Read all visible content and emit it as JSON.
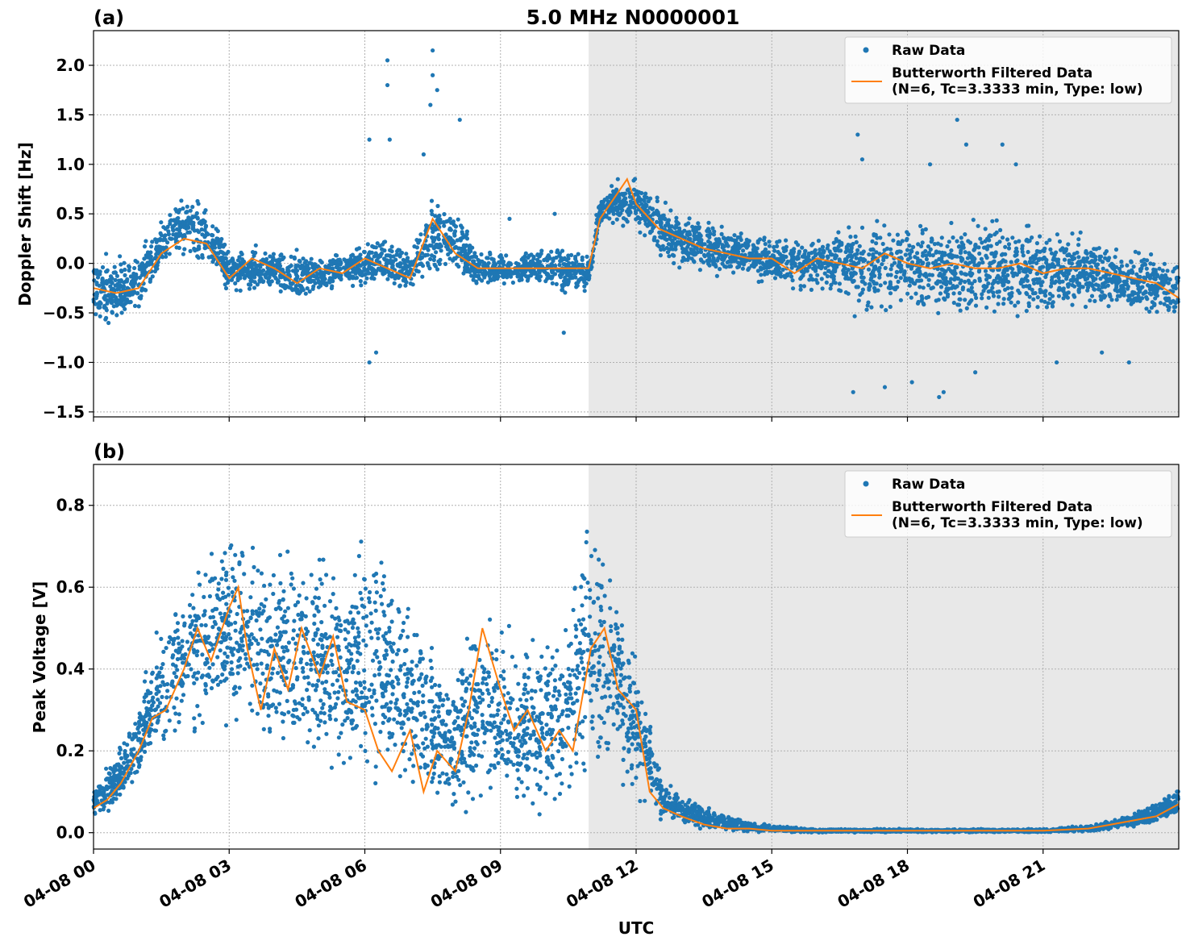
{
  "title": "5.0 MHz N0000001",
  "colors": {
    "raw": "#1f77b4",
    "filtered": "#ff7f0e",
    "night_shade": "#e8e8e8"
  },
  "chart_data": [
    {
      "panel": "(a)",
      "type": "scatter",
      "ylabel": "Doppler Shift [Hz]",
      "xlabel": "",
      "xlim": [
        0,
        24
      ],
      "ylim": [
        -1.55,
        2.35
      ],
      "yticks": [
        -1.5,
        -1.0,
        -0.5,
        0.0,
        0.5,
        1.0,
        1.5,
        2.0
      ],
      "ytick_labels": [
        "−1.5",
        "−1.0",
        "−0.5",
        "0.0",
        "0.5",
        "1.0",
        "1.5",
        "2.0"
      ],
      "xticks": [
        0,
        3,
        6,
        9,
        12,
        15,
        18,
        21
      ],
      "grid": true,
      "legend_position": "top-right",
      "shaded_region": {
        "x_start": 10.95,
        "x_end": 24
      },
      "series": [
        {
          "name": "Raw Data",
          "kind": "points",
          "envelope_x": [
            0,
            1,
            1.5,
            2,
            2.5,
            3,
            3.5,
            4,
            4.5,
            5,
            5.5,
            6,
            6.5,
            7,
            7.5,
            8,
            8.5,
            9,
            9.5,
            10,
            10.5,
            10.95,
            11.2,
            11.5,
            12,
            12.5,
            13,
            13.5,
            14,
            14.5,
            15,
            15.5,
            16,
            16.5,
            17,
            17.5,
            18,
            18.5,
            19,
            19.5,
            20,
            20.5,
            21,
            21.5,
            22,
            22.5,
            23,
            23.5,
            24
          ],
          "envelope_low": [
            -0.7,
            -0.6,
            -0.15,
            0.0,
            -0.05,
            -0.35,
            -0.35,
            -0.3,
            -0.5,
            -0.35,
            -0.25,
            -0.3,
            -0.3,
            -0.3,
            -0.2,
            -0.2,
            -0.3,
            -0.25,
            -0.25,
            -0.25,
            -0.4,
            -0.3,
            0.35,
            0.35,
            0.3,
            0.05,
            -0.1,
            -0.15,
            -0.15,
            -0.2,
            -0.25,
            -0.35,
            -0.3,
            -0.5,
            -0.6,
            -0.6,
            -0.6,
            -0.6,
            -0.65,
            -0.65,
            -0.65,
            -0.6,
            -0.6,
            -0.55,
            -0.55,
            -0.55,
            -0.6,
            -0.6,
            -0.65
          ],
          "envelope_high": [
            0.15,
            0.15,
            0.55,
            0.75,
            0.65,
            0.2,
            0.2,
            0.15,
            0.25,
            0.1,
            0.15,
            0.25,
            0.3,
            0.15,
            0.8,
            0.6,
            0.15,
            0.15,
            0.15,
            0.2,
            0.25,
            0.1,
            0.7,
            0.85,
            0.9,
            0.7,
            0.55,
            0.5,
            0.4,
            0.35,
            0.3,
            0.3,
            0.35,
            0.55,
            0.5,
            0.5,
            0.55,
            0.6,
            0.55,
            0.6,
            0.55,
            0.5,
            0.45,
            0.4,
            0.35,
            0.3,
            0.2,
            0.15,
            0.1
          ]
        },
        {
          "name": "Butterworth Filtered Data\n(N=6, Tc=3.3333 min, Type: low)",
          "kind": "line",
          "x": [
            0,
            0.5,
            1,
            1.5,
            2,
            2.5,
            3,
            3.5,
            4,
            4.5,
            5,
            5.5,
            6,
            6.5,
            7,
            7.5,
            8,
            8.5,
            9,
            9.5,
            10,
            10.5,
            10.95,
            11.2,
            11.5,
            11.8,
            12,
            12.5,
            13,
            13.5,
            14,
            14.5,
            15,
            15.5,
            16,
            16.5,
            17,
            17.5,
            18,
            18.5,
            19,
            19.5,
            20,
            20.5,
            21,
            21.5,
            22,
            22.5,
            23,
            23.5,
            24
          ],
          "y": [
            -0.25,
            -0.3,
            -0.25,
            0.1,
            0.25,
            0.2,
            -0.15,
            0.05,
            -0.05,
            -0.2,
            -0.05,
            -0.1,
            0.05,
            -0.05,
            -0.15,
            0.45,
            0.1,
            -0.05,
            -0.05,
            -0.05,
            -0.05,
            -0.05,
            -0.05,
            0.45,
            0.65,
            0.85,
            0.6,
            0.35,
            0.25,
            0.15,
            0.1,
            0.05,
            0.05,
            -0.1,
            0.05,
            0.0,
            -0.05,
            0.1,
            0.0,
            -0.05,
            0.0,
            -0.05,
            -0.05,
            0.0,
            -0.1,
            -0.05,
            -0.05,
            -0.1,
            -0.15,
            -0.2,
            -0.35
          ]
        }
      ],
      "outliers": [
        [
          6.1,
          1.25
        ],
        [
          6.1,
          -1.0
        ],
        [
          6.25,
          -0.9
        ],
        [
          6.5,
          2.05
        ],
        [
          6.5,
          1.8
        ],
        [
          6.55,
          1.25
        ],
        [
          7.3,
          1.1
        ],
        [
          7.45,
          1.6
        ],
        [
          7.5,
          2.15
        ],
        [
          7.5,
          1.9
        ],
        [
          7.6,
          1.75
        ],
        [
          8.1,
          1.45
        ],
        [
          9.2,
          0.45
        ],
        [
          10.2,
          0.5
        ],
        [
          10.4,
          -0.7
        ],
        [
          16.8,
          -1.3
        ],
        [
          16.9,
          1.3
        ],
        [
          17.0,
          1.05
        ],
        [
          17.5,
          -1.25
        ],
        [
          18.1,
          -1.2
        ],
        [
          18.5,
          1.0
        ],
        [
          18.7,
          -1.35
        ],
        [
          18.8,
          -1.3
        ],
        [
          19.1,
          1.45
        ],
        [
          19.3,
          1.2
        ],
        [
          19.5,
          -1.1
        ],
        [
          20.1,
          1.2
        ],
        [
          20.4,
          1.0
        ],
        [
          21.3,
          -1.0
        ],
        [
          22.3,
          -0.9
        ],
        [
          22.9,
          -1.0
        ]
      ]
    },
    {
      "panel": "(b)",
      "type": "scatter",
      "ylabel": "Peak Voltage [V]",
      "xlabel": "UTC",
      "xlim": [
        0,
        24
      ],
      "ylim": [
        -0.04,
        0.9
      ],
      "yticks": [
        0.0,
        0.2,
        0.4,
        0.6,
        0.8
      ],
      "ytick_labels": [
        "0.0",
        "0.2",
        "0.4",
        "0.6",
        "0.8"
      ],
      "xticks": [
        0,
        3,
        6,
        9,
        12,
        15,
        18,
        21
      ],
      "xtick_labels": [
        "04-08 00",
        "04-08 03",
        "04-08 06",
        "04-08 09",
        "04-08 12",
        "04-08 15",
        "04-08 18",
        "04-08 21"
      ],
      "grid": true,
      "legend_position": "top-right",
      "shaded_region": {
        "x_start": 10.95,
        "x_end": 24
      },
      "series": [
        {
          "name": "Raw Data",
          "kind": "points",
          "envelope_x": [
            0,
            0.5,
            1,
            1.5,
            2,
            2.5,
            3,
            3.5,
            4,
            4.5,
            5,
            5.5,
            6,
            6.5,
            7,
            7.5,
            8,
            8.5,
            9,
            9.5,
            10,
            10.5,
            11,
            11.5,
            12,
            12.3,
            12.6,
            13,
            13.5,
            14,
            14.5,
            15,
            16,
            17,
            18,
            19,
            20,
            21,
            22,
            23,
            23.5,
            24
          ],
          "envelope_low": [
            0.03,
            0.05,
            0.1,
            0.15,
            0.18,
            0.2,
            0.2,
            0.15,
            0.12,
            0.1,
            0.1,
            0.08,
            0.06,
            0.05,
            0.05,
            0.03,
            0.03,
            0.04,
            0.04,
            0.02,
            0.02,
            0.05,
            0.1,
            0.08,
            0.05,
            0.03,
            0.02,
            0.01,
            0.0,
            0.0,
            0.0,
            0.0,
            0.0,
            0.0,
            0.0,
            0.0,
            0.0,
            0.0,
            0.0,
            0.01,
            0.02,
            0.03
          ],
          "envelope_high": [
            0.12,
            0.2,
            0.35,
            0.55,
            0.65,
            0.72,
            0.82,
            0.8,
            0.7,
            0.78,
            0.75,
            0.72,
            0.8,
            0.7,
            0.6,
            0.52,
            0.4,
            0.6,
            0.55,
            0.5,
            0.5,
            0.6,
            0.86,
            0.7,
            0.45,
            0.3,
            0.15,
            0.1,
            0.07,
            0.05,
            0.03,
            0.02,
            0.01,
            0.01,
            0.01,
            0.01,
            0.01,
            0.01,
            0.02,
            0.05,
            0.08,
            0.12
          ]
        },
        {
          "name": "Butterworth Filtered Data\n(N=6, Tc=3.3333 min, Type: low)",
          "kind": "line",
          "x": [
            0,
            0.3,
            0.6,
            1,
            1.3,
            1.6,
            2,
            2.3,
            2.6,
            3,
            3.2,
            3.4,
            3.7,
            4,
            4.3,
            4.6,
            5,
            5.3,
            5.6,
            6,
            6.3,
            6.6,
            7,
            7.3,
            7.6,
            8,
            8.3,
            8.6,
            9,
            9.3,
            9.6,
            10,
            10.3,
            10.6,
            11,
            11.3,
            11.6,
            12,
            12.3,
            12.6,
            13,
            13.5,
            14,
            14.5,
            15,
            16,
            17,
            18,
            19,
            20,
            21,
            22,
            22.5,
            23,
            23.5,
            24
          ],
          "y": [
            0.06,
            0.08,
            0.12,
            0.2,
            0.28,
            0.3,
            0.4,
            0.5,
            0.42,
            0.55,
            0.6,
            0.45,
            0.3,
            0.45,
            0.35,
            0.5,
            0.38,
            0.48,
            0.32,
            0.3,
            0.2,
            0.15,
            0.25,
            0.1,
            0.2,
            0.15,
            0.3,
            0.5,
            0.35,
            0.25,
            0.3,
            0.2,
            0.25,
            0.2,
            0.45,
            0.5,
            0.35,
            0.3,
            0.1,
            0.06,
            0.04,
            0.02,
            0.01,
            0.01,
            0.005,
            0.005,
            0.005,
            0.005,
            0.005,
            0.005,
            0.005,
            0.01,
            0.02,
            0.03,
            0.04,
            0.07
          ]
        }
      ],
      "outliers": []
    }
  ]
}
